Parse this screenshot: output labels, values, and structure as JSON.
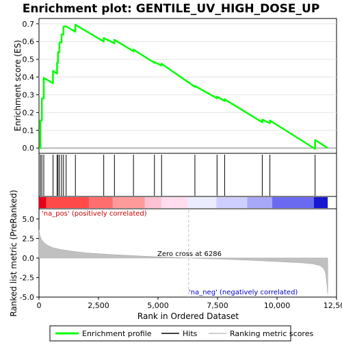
{
  "chart_data": {
    "type": "line",
    "title": "Enrichment plot: GENTILE_UV_HIGH_DOSE_UP",
    "colors": {
      "enrichment_line": "#00ff00",
      "hits": "#000000",
      "ranking_fill": "#c0c0c0",
      "zero_cross_line": "#c0c0c0",
      "pos_label": "#cc0000",
      "neg_label": "#0000cc"
    },
    "enrichment_panel": {
      "ylabel": "Enrichment score (ES)",
      "ylim": [
        -0.03,
        0.73
      ],
      "yticks": [
        0.0,
        0.1,
        0.2,
        0.3,
        0.4,
        0.5,
        0.6,
        0.7
      ],
      "ytick_labels": [
        "0.0",
        "0.1",
        "0.2",
        "0.3",
        "0.4",
        "0.5",
        "0.6",
        "0.7"
      ],
      "series_name": "Enrichment profile",
      "x": [
        0,
        60,
        60,
        120,
        120,
        200,
        200,
        590,
        590,
        760,
        760,
        800,
        800,
        860,
        860,
        950,
        950,
        1030,
        1030,
        1140,
        1140,
        1530,
        1530,
        2720,
        2720,
        3170,
        3170,
        3970,
        3970,
        4850,
        4850,
        5150,
        5150,
        6550,
        6550,
        7480,
        7480,
        7800,
        7800,
        9380,
        9380,
        9700,
        9700,
        11600,
        11600,
        12130
      ],
      "y": [
        0.0,
        0.0,
        0.155,
        0.155,
        0.28,
        0.28,
        0.395,
        0.365,
        0.435,
        0.42,
        0.48,
        0.48,
        0.54,
        0.54,
        0.595,
        0.595,
        0.64,
        0.64,
        0.685,
        0.685,
        0.685,
        0.655,
        0.695,
        0.6,
        0.62,
        0.59,
        0.61,
        0.545,
        0.555,
        0.48,
        0.485,
        0.465,
        0.475,
        0.345,
        0.35,
        0.28,
        0.29,
        0.265,
        0.275,
        0.145,
        0.16,
        0.14,
        0.155,
        -0.005,
        0.045,
        0.0
      ]
    },
    "hits": {
      "label": "Hits",
      "positions": [
        60,
        120,
        200,
        590,
        760,
        800,
        860,
        950,
        1030,
        1140,
        1530,
        2720,
        3170,
        3970,
        4850,
        5150,
        6550,
        7480,
        7800,
        9380,
        9700,
        11600
      ]
    },
    "color_bar": {
      "segments": [
        {
          "from": 0,
          "to": 300,
          "color": "#e8001a"
        },
        {
          "from": 300,
          "to": 2100,
          "color": "#ff4a4a"
        },
        {
          "from": 2100,
          "to": 3100,
          "color": "#ff6e6e"
        },
        {
          "from": 3100,
          "to": 4450,
          "color": "#ff9a9a"
        },
        {
          "from": 4450,
          "to": 5150,
          "color": "#ffc2d2"
        },
        {
          "from": 5150,
          "to": 6250,
          "color": "#ffdcee"
        },
        {
          "from": 6250,
          "to": 7450,
          "color": "#ececff"
        },
        {
          "from": 7450,
          "to": 8750,
          "color": "#cfcfff"
        },
        {
          "from": 8750,
          "to": 9800,
          "color": "#a8a8f8"
        },
        {
          "from": 9800,
          "to": 11550,
          "color": "#6a6af0"
        },
        {
          "from": 11550,
          "to": 12130,
          "color": "#1818d0"
        }
      ]
    },
    "ranking_panel": {
      "ylabel": "Ranked list metric (PreRanked)",
      "ylim": [
        -5.0,
        6.3
      ],
      "yticks": [
        -5.0,
        -2.5,
        0.0,
        2.5,
        5.0
      ],
      "ytick_labels": [
        "-5.0",
        "-2.5",
        "0.0",
        "2.5",
        "5.0"
      ],
      "series_name": "Ranking metric scores",
      "x": [
        0,
        30,
        80,
        150,
        250,
        400,
        600,
        900,
        1300,
        2000,
        3000,
        4000,
        5000,
        6286,
        7000,
        8000,
        9000,
        10000,
        11000,
        11500,
        11800,
        11950,
        12050,
        12100,
        12130
      ],
      "y": [
        3.6,
        3.0,
        2.5,
        2.15,
        1.85,
        1.55,
        1.3,
        1.1,
        0.9,
        0.65,
        0.45,
        0.3,
        0.15,
        0.0,
        -0.08,
        -0.18,
        -0.3,
        -0.45,
        -0.6,
        -0.75,
        -0.95,
        -1.3,
        -2.0,
        -3.5,
        -4.6
      ],
      "zero_cross_label": "Zero cross at 6286",
      "zero_cross_x": 6286,
      "pos_label": "'na_pos' (positively correlated)",
      "neg_label": "'na_neg' (negatively correlated)"
    },
    "x_axis": {
      "label": "Rank in Ordered Dataset",
      "xlim": [
        0,
        12500
      ],
      "xticks": [
        0,
        2500,
        5000,
        7500,
        10000,
        12500
      ],
      "xtick_labels": [
        "0",
        "2,500",
        "5,000",
        "7,500",
        "10,000",
        "12,500"
      ]
    },
    "legend": {
      "placement": "bottom",
      "entries": [
        "Enrichment profile",
        "Hits",
        "Ranking metric scores"
      ]
    }
  }
}
